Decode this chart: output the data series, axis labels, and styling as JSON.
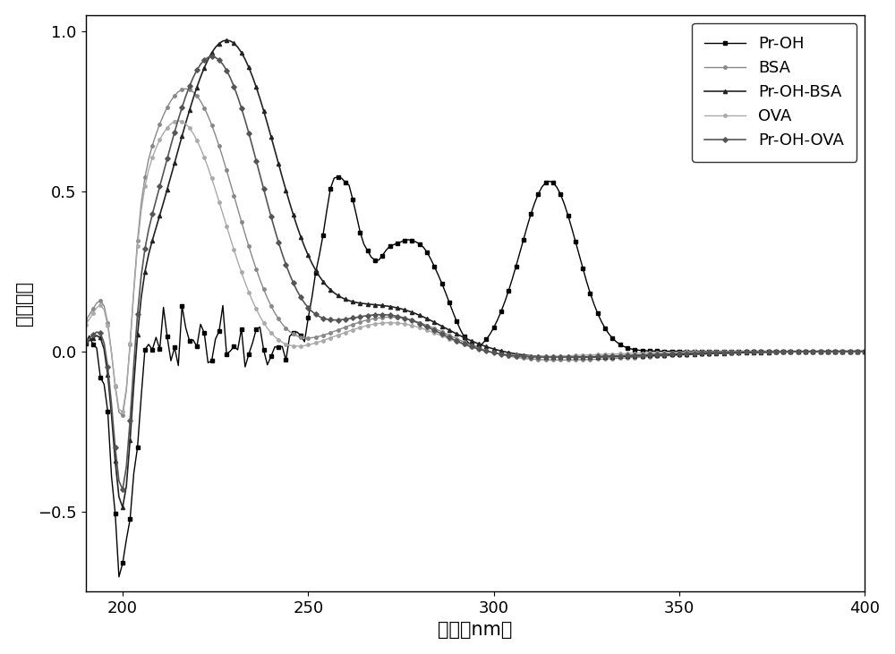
{
  "title": "",
  "xlabel": "波长（nm）",
  "ylabel": "吸光度値",
  "xlim": [
    190,
    400
  ],
  "ylim": [
    -0.75,
    1.05
  ],
  "xticks": [
    200,
    250,
    300,
    350,
    400
  ],
  "yticks": [
    -0.5,
    0.0,
    0.5,
    1.0
  ],
  "legend_fontsize": 13,
  "axis_fontsize": 15,
  "tick_fontsize": 13,
  "figsize": [
    10.0,
    7.31
  ],
  "dpi": 100,
  "colors": {
    "Pr-OH": "#000000",
    "BSA": "#888888",
    "Pr-OH-BSA": "#222222",
    "OVA": "#aaaaaa",
    "Pr-OH-OVA": "#555555"
  },
  "linewidths": {
    "Pr-OH": 1.0,
    "BSA": 1.0,
    "Pr-OH-BSA": 1.2,
    "OVA": 1.0,
    "Pr-OH-OVA": 1.2
  },
  "markers": {
    "Pr-OH": "s",
    "BSA": "o",
    "Pr-OH-BSA": "^",
    "OVA": "o",
    "Pr-OH-OVA": "D"
  },
  "markersizes": {
    "Pr-OH": 3.0,
    "BSA": 2.5,
    "Pr-OH-BSA": 3.0,
    "OVA": 2.5,
    "Pr-OH-OVA": 2.8
  }
}
